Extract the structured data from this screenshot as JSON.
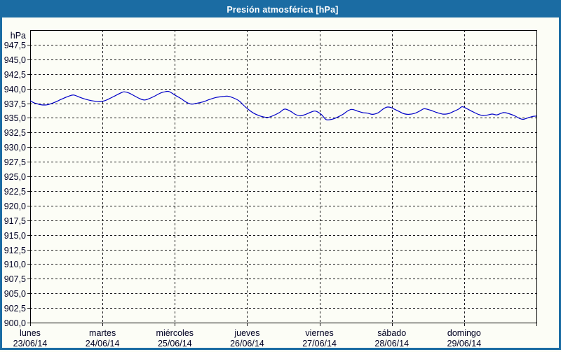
{
  "window": {
    "title": "Presión atmosférica [hPa]"
  },
  "colors": {
    "frame": "#1b6ca3",
    "titlebar": "#1b6ca3",
    "title_text": "#ffffff",
    "line": "#0000c8",
    "grid": "#1a1a1a",
    "axis_text": "#000022",
    "background": "#fcfdf6"
  },
  "chart_data": {
    "type": "line",
    "title": "Presión atmosférica [hPa]",
    "unit_label": "hPa",
    "ylabel": "hPa",
    "ylim": [
      900,
      950
    ],
    "ytick_step": 2.5,
    "yticks": [
      {
        "value": 947.5,
        "label": "947,5"
      },
      {
        "value": 945.0,
        "label": "945,0"
      },
      {
        "value": 942.5,
        "label": "942,5"
      },
      {
        "value": 940.0,
        "label": "940,0"
      },
      {
        "value": 937.5,
        "label": "937,5"
      },
      {
        "value": 935.0,
        "label": "935,0"
      },
      {
        "value": 932.5,
        "label": "932,5"
      },
      {
        "value": 930.0,
        "label": "930,0"
      },
      {
        "value": 927.5,
        "label": "927,5"
      },
      {
        "value": 925.0,
        "label": "925,0"
      },
      {
        "value": 922.5,
        "label": "922,5"
      },
      {
        "value": 920.0,
        "label": "920,0"
      },
      {
        "value": 917.5,
        "label": "917,5"
      },
      {
        "value": 915.0,
        "label": "915,0"
      },
      {
        "value": 912.5,
        "label": "912,5"
      },
      {
        "value": 910.0,
        "label": "910,0"
      },
      {
        "value": 907.5,
        "label": "907,5"
      },
      {
        "value": 905.0,
        "label": "905,0"
      },
      {
        "value": 902.5,
        "label": "902,5"
      },
      {
        "value": 900.0,
        "label": "900,0"
      }
    ],
    "xlim_days": [
      0,
      7
    ],
    "days": [
      {
        "label": "lunes",
        "date": "23/06/14"
      },
      {
        "label": "martes",
        "date": "24/06/14"
      },
      {
        "label": "miércoles",
        "date": "25/06/14"
      },
      {
        "label": "jueves",
        "date": "26/06/14"
      },
      {
        "label": "viernes",
        "date": "27/06/14"
      },
      {
        "label": "sábado",
        "date": "28/06/14"
      },
      {
        "label": "domingo",
        "date": "29/06/14"
      }
    ],
    "grid": "dashed",
    "legend": "none",
    "series": [
      {
        "name": "Presión atmosférica",
        "unit": "hPa",
        "points_format": "[days_since_monday_00h, hPa]",
        "points": [
          [
            0.0,
            937.95
          ],
          [
            0.048,
            937.6
          ],
          [
            0.097,
            937.4
          ],
          [
            0.145,
            937.25
          ],
          [
            0.213,
            937.2
          ],
          [
            0.271,
            937.35
          ],
          [
            0.339,
            937.65
          ],
          [
            0.436,
            938.2
          ],
          [
            0.533,
            938.7
          ],
          [
            0.601,
            938.9
          ],
          [
            0.679,
            938.55
          ],
          [
            0.747,
            938.25
          ],
          [
            0.824,
            938.0
          ],
          [
            0.892,
            937.85
          ],
          [
            0.96,
            937.75
          ],
          [
            1.037,
            937.95
          ],
          [
            1.115,
            938.4
          ],
          [
            1.202,
            938.95
          ],
          [
            1.26,
            939.3
          ],
          [
            1.299,
            939.45
          ],
          [
            1.367,
            939.25
          ],
          [
            1.435,
            938.8
          ],
          [
            1.512,
            938.3
          ],
          [
            1.58,
            938.05
          ],
          [
            1.648,
            938.3
          ],
          [
            1.726,
            938.75
          ],
          [
            1.803,
            939.25
          ],
          [
            1.862,
            939.45
          ],
          [
            1.92,
            939.5
          ],
          [
            2.007,
            938.85
          ],
          [
            2.084,
            938.3
          ],
          [
            2.162,
            937.65
          ],
          [
            2.23,
            937.35
          ],
          [
            2.307,
            937.5
          ],
          [
            2.395,
            937.75
          ],
          [
            2.482,
            938.15
          ],
          [
            2.579,
            938.5
          ],
          [
            2.666,
            938.65
          ],
          [
            2.734,
            938.7
          ],
          [
            2.812,
            938.4
          ],
          [
            2.889,
            937.9
          ],
          [
            2.947,
            937.2
          ],
          [
            3.005,
            936.55
          ],
          [
            3.083,
            935.85
          ],
          [
            3.161,
            935.4
          ],
          [
            3.228,
            935.15
          ],
          [
            3.296,
            935.1
          ],
          [
            3.374,
            935.45
          ],
          [
            3.452,
            935.95
          ],
          [
            3.519,
            936.5
          ],
          [
            3.597,
            936.15
          ],
          [
            3.665,
            935.6
          ],
          [
            3.733,
            935.35
          ],
          [
            3.81,
            935.6
          ],
          [
            3.888,
            936.0
          ],
          [
            3.946,
            936.15
          ],
          [
            4.024,
            935.6
          ],
          [
            4.092,
            934.7
          ],
          [
            4.169,
            934.75
          ],
          [
            4.247,
            935.1
          ],
          [
            4.324,
            935.6
          ],
          [
            4.392,
            936.2
          ],
          [
            4.45,
            936.45
          ],
          [
            4.528,
            936.15
          ],
          [
            4.596,
            935.9
          ],
          [
            4.664,
            935.8
          ],
          [
            4.731,
            935.6
          ],
          [
            4.809,
            935.85
          ],
          [
            4.858,
            936.3
          ],
          [
            4.906,
            936.7
          ],
          [
            4.945,
            936.85
          ],
          [
            4.993,
            936.75
          ],
          [
            5.042,
            936.45
          ],
          [
            5.1,
            936.1
          ],
          [
            5.168,
            935.7
          ],
          [
            5.235,
            935.6
          ],
          [
            5.313,
            935.75
          ],
          [
            5.391,
            936.2
          ],
          [
            5.449,
            936.55
          ],
          [
            5.536,
            936.3
          ],
          [
            5.614,
            935.95
          ],
          [
            5.701,
            935.65
          ],
          [
            5.778,
            935.7
          ],
          [
            5.856,
            936.1
          ],
          [
            5.924,
            936.5
          ],
          [
            5.973,
            936.9
          ],
          [
            6.04,
            936.55
          ],
          [
            6.118,
            936.05
          ],
          [
            6.196,
            935.6
          ],
          [
            6.263,
            935.4
          ],
          [
            6.331,
            935.5
          ],
          [
            6.389,
            935.65
          ],
          [
            6.447,
            935.5
          ],
          [
            6.506,
            935.75
          ],
          [
            6.554,
            935.9
          ],
          [
            6.622,
            935.7
          ],
          [
            6.699,
            935.35
          ],
          [
            6.767,
            934.9
          ],
          [
            6.816,
            934.75
          ],
          [
            6.884,
            935.0
          ],
          [
            6.951,
            935.25
          ],
          [
            7.0,
            935.3
          ]
        ]
      }
    ]
  }
}
